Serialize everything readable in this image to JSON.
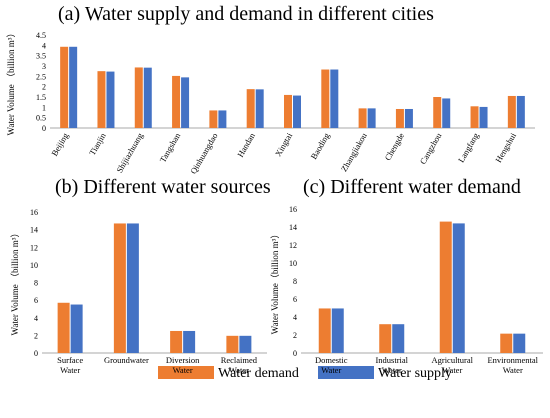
{
  "colors": {
    "demand": "#ED7D31",
    "supply": "#4472C4"
  },
  "legend": {
    "demand_label": "Water demand",
    "supply_label": "Water supply"
  },
  "chart_data": [
    {
      "type": "bar",
      "title": "(a) Water supply and demand in different cities",
      "ylabel": "Water Volume （billion m³）",
      "ylim": [
        0,
        4.5
      ],
      "yticks": [
        "0",
        "0.5",
        "1",
        "1.5",
        "2",
        "2.5",
        "3",
        "3.5",
        "4",
        "4.5"
      ],
      "categories": [
        "Beijing",
        "Tianjin",
        "Shijiazhuang",
        "Tangshan",
        "Qinhuangdao",
        "Handan",
        "Xingtai",
        "Baoding",
        "Zhangjiakou",
        "Chengde",
        "Cangzhou",
        "Langfang",
        "Hengshui"
      ],
      "series": [
        {
          "name": "Water demand",
          "values": [
            3.93,
            2.75,
            2.93,
            2.52,
            0.85,
            1.88,
            1.6,
            2.83,
            0.95,
            0.92,
            1.5,
            1.05,
            1.55
          ]
        },
        {
          "name": "Water supply",
          "values": [
            3.93,
            2.73,
            2.92,
            2.45,
            0.85,
            1.87,
            1.57,
            2.83,
            0.95,
            0.92,
            1.43,
            1.02,
            1.55
          ]
        }
      ]
    },
    {
      "type": "bar",
      "title": "(b) Different water sources",
      "ylabel": "Water Volume （billion m³）",
      "ylim": [
        0,
        16
      ],
      "yticks": [
        "0",
        "2",
        "4",
        "6",
        "8",
        "10",
        "12",
        "14",
        "16"
      ],
      "categories": [
        "Surface Water",
        "Groundwater",
        "Diversion Water",
        "Reclaimed Water"
      ],
      "series": [
        {
          "name": "Water demand",
          "values": [
            5.7,
            14.7,
            2.5,
            1.95
          ]
        },
        {
          "name": "Water supply",
          "values": [
            5.5,
            14.7,
            2.5,
            1.95
          ]
        }
      ]
    },
    {
      "type": "bar",
      "title": "(c) Different water demand",
      "ylabel": "Water Volume（billion m³）",
      "ylim": [
        0,
        16
      ],
      "yticks": [
        "0",
        "2",
        "4",
        "6",
        "8",
        "10",
        "12",
        "14",
        "16"
      ],
      "categories": [
        "Domestic Water",
        "Industrial Water",
        "Agricultural Water",
        "Environmental Water"
      ],
      "series": [
        {
          "name": "Water demand",
          "values": [
            4.95,
            3.2,
            14.6,
            2.15
          ]
        },
        {
          "name": "Water supply",
          "values": [
            4.95,
            3.2,
            14.4,
            2.15
          ]
        }
      ]
    }
  ]
}
